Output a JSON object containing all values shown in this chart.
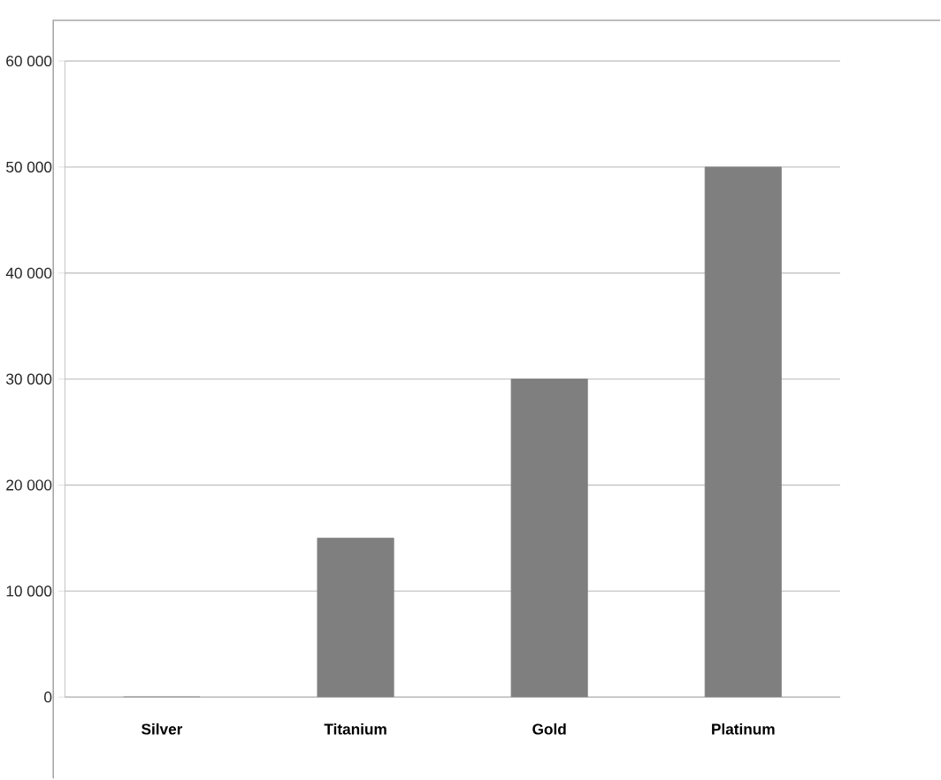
{
  "chart_data": {
    "type": "bar",
    "categories": [
      "Silver",
      "Titanium",
      "Gold",
      "Platinum"
    ],
    "values": [
      0,
      15000,
      30000,
      50000
    ],
    "color": "#7f7f7f",
    "ylim": [
      0,
      60000
    ],
    "yticks": [
      {
        "value": 0,
        "label": "0"
      },
      {
        "value": 10000,
        "label": "10 000"
      },
      {
        "value": 20000,
        "label": "20 000"
      },
      {
        "value": 30000,
        "label": "30 000"
      },
      {
        "value": 40000,
        "label": "40 000"
      },
      {
        "value": 50000,
        "label": "50 000"
      },
      {
        "value": 60000,
        "label": "60 000"
      }
    ],
    "grid": "y"
  }
}
